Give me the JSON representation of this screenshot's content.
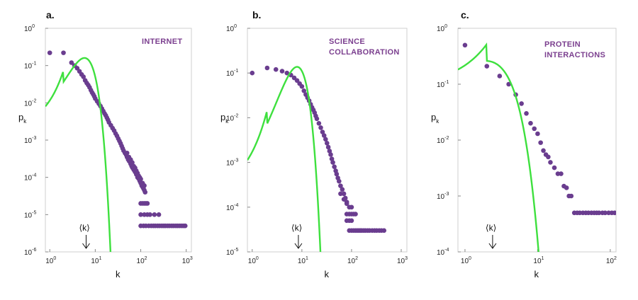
{
  "colors": {
    "data": "#6a3d8f",
    "fit": "#3ee03e",
    "annotation": "#7b3f8f",
    "frame": "#cfcfcf"
  },
  "chart_data": [
    {
      "type": "scatter",
      "panel": "a.",
      "annotation": [
        "INTERNET"
      ],
      "xlabel": "k",
      "ylabel": "p",
      "ylabel_sub": "k",
      "x_scale": "log",
      "y_scale": "log",
      "xlim": [
        0.8,
        1300
      ],
      "ylim": [
        1e-06,
        1
      ],
      "x_ticks": [
        {
          "base": "10",
          "exp": "0",
          "v": 1
        },
        {
          "base": "10",
          "exp": "1",
          "v": 10
        },
        {
          "base": "10",
          "exp": "2",
          "v": 100
        },
        {
          "base": "10",
          "exp": "3",
          "v": 1000
        }
      ],
      "y_ticks": [
        {
          "base": "10",
          "exp": "0",
          "v": 1
        },
        {
          "base": "10",
          "exp": "-1",
          "v": 0.1
        },
        {
          "base": "10",
          "exp": "-2",
          "v": 0.01
        },
        {
          "base": "10",
          "exp": "-3",
          "v": 0.001
        },
        {
          "base": "10",
          "exp": "-4",
          "v": 0.0001
        },
        {
          "base": "10",
          "exp": "-5",
          "v": 1e-05
        },
        {
          "base": "10",
          "exp": "-6",
          "v": 1e-06
        }
      ],
      "mean_k_label": "⟨k⟩",
      "mean_k": 6.3,
      "fit_poisson_mean": 6.3,
      "points": [
        [
          1,
          0.22
        ],
        [
          2,
          0.22
        ],
        [
          3,
          0.12
        ],
        [
          3.5,
          0.1
        ],
        [
          4,
          0.085
        ],
        [
          4.5,
          0.07
        ],
        [
          5,
          0.058
        ],
        [
          5.5,
          0.05
        ],
        [
          6,
          0.04
        ],
        [
          6.5,
          0.034
        ],
        [
          7,
          0.03
        ],
        [
          7.5,
          0.026
        ],
        [
          8,
          0.022
        ],
        [
          8.5,
          0.019
        ],
        [
          9,
          0.017
        ],
        [
          9.5,
          0.015
        ],
        [
          10,
          0.013
        ],
        [
          11,
          0.011
        ],
        [
          12,
          0.0095
        ],
        [
          13,
          0.0082
        ],
        [
          14,
          0.007
        ],
        [
          15,
          0.006
        ],
        [
          16,
          0.0052
        ],
        [
          17,
          0.0046
        ],
        [
          18,
          0.004
        ],
        [
          19,
          0.0035
        ],
        [
          20,
          0.003
        ],
        [
          22,
          0.0025
        ],
        [
          24,
          0.0021
        ],
        [
          26,
          0.0018
        ],
        [
          28,
          0.0015
        ],
        [
          30,
          0.0013
        ],
        [
          32,
          0.0011
        ],
        [
          34,
          0.00095
        ],
        [
          36,
          0.00082
        ],
        [
          38,
          0.0007
        ],
        [
          40,
          0.0006
        ],
        [
          42,
          0.00052
        ],
        [
          45,
          0.00045
        ],
        [
          48,
          0.0004
        ],
        [
          50,
          0.00035
        ],
        [
          53,
          0.0003
        ],
        [
          56,
          0.00027
        ],
        [
          60,
          0.00023
        ],
        [
          63,
          0.0002
        ],
        [
          66,
          0.00018
        ],
        [
          70,
          0.00016
        ],
        [
          75,
          0.00014
        ],
        [
          80,
          0.00012
        ],
        [
          85,
          0.0001
        ],
        [
          90,
          9.2e-05
        ],
        [
          95,
          8e-05
        ],
        [
          100,
          7e-05
        ],
        [
          105,
          6e-05
        ],
        [
          110,
          5.5e-05
        ],
        [
          115,
          5e-05
        ],
        [
          120,
          4.5e-05
        ],
        [
          125,
          4e-05
        ],
        [
          50,
          0.00045
        ],
        [
          55,
          0.00035
        ],
        [
          60,
          0.0003
        ],
        [
          65,
          0.00025
        ],
        [
          70,
          0.0002
        ],
        [
          75,
          0.00018
        ],
        [
          80,
          0.00015
        ],
        [
          85,
          0.00013
        ],
        [
          90,
          0.00011
        ],
        [
          95,
          0.0001
        ],
        [
          100,
          9e-05
        ],
        [
          110,
          7e-05
        ],
        [
          120,
          6e-05
        ],
        [
          100,
          2e-05
        ],
        [
          110,
          2e-05
        ],
        [
          120,
          2e-05
        ],
        [
          130,
          2e-05
        ],
        [
          140,
          2e-05
        ],
        [
          100,
          1e-05
        ],
        [
          120,
          1e-05
        ],
        [
          140,
          1e-05
        ],
        [
          160,
          1e-05
        ],
        [
          200,
          1e-05
        ],
        [
          250,
          1e-05
        ],
        [
          100,
          5e-06
        ],
        [
          115,
          5e-06
        ],
        [
          130,
          5e-06
        ],
        [
          150,
          5e-06
        ],
        [
          170,
          5e-06
        ],
        [
          190,
          5e-06
        ],
        [
          210,
          5e-06
        ],
        [
          235,
          5e-06
        ],
        [
          260,
          5e-06
        ],
        [
          290,
          5e-06
        ],
        [
          320,
          5e-06
        ],
        [
          350,
          5e-06
        ],
        [
          390,
          5e-06
        ],
        [
          430,
          5e-06
        ],
        [
          480,
          5e-06
        ],
        [
          530,
          5e-06
        ],
        [
          590,
          5e-06
        ],
        [
          650,
          5e-06
        ],
        [
          720,
          5e-06
        ],
        [
          800,
          5e-06
        ],
        [
          880,
          5e-06
        ],
        [
          950,
          5e-06
        ]
      ]
    },
    {
      "type": "scatter",
      "panel": "b.",
      "annotation": [
        "SCIENCE",
        "COLLABORATION"
      ],
      "xlabel": "k",
      "ylabel": "p",
      "ylabel_sub": "k",
      "x_scale": "log",
      "y_scale": "log",
      "xlim": [
        0.8,
        1300
      ],
      "ylim": [
        1e-05,
        1
      ],
      "x_ticks": [
        {
          "base": "10",
          "exp": "0",
          "v": 1
        },
        {
          "base": "10",
          "exp": "1",
          "v": 10
        },
        {
          "base": "10",
          "exp": "2",
          "v": 100
        },
        {
          "base": "10",
          "exp": "3",
          "v": 1000
        }
      ],
      "y_ticks": [
        {
          "base": "10",
          "exp": "0",
          "v": 1
        },
        {
          "base": "10",
          "exp": "-1",
          "v": 0.1
        },
        {
          "base": "10",
          "exp": "-2",
          "v": 0.01
        },
        {
          "base": "10",
          "exp": "-3",
          "v": 0.001
        },
        {
          "base": "10",
          "exp": "-4",
          "v": 0.0001
        },
        {
          "base": "10",
          "exp": "-5",
          "v": 1e-05
        }
      ],
      "mean_k_label": "⟨k⟩",
      "mean_k": 8.5,
      "fit_poisson_mean": 8.5,
      "points": [
        [
          1,
          0.1
        ],
        [
          2,
          0.13
        ],
        [
          3,
          0.12
        ],
        [
          4,
          0.11
        ],
        [
          5,
          0.1
        ],
        [
          6,
          0.09
        ],
        [
          7,
          0.078
        ],
        [
          8,
          0.068
        ],
        [
          9,
          0.058
        ],
        [
          10,
          0.05
        ],
        [
          11,
          0.04
        ],
        [
          12,
          0.033
        ],
        [
          13,
          0.028
        ],
        [
          14,
          0.024
        ],
        [
          15,
          0.02
        ],
        [
          16,
          0.017
        ],
        [
          17,
          0.015
        ],
        [
          18,
          0.013
        ],
        [
          19,
          0.011
        ],
        [
          20,
          0.0095
        ],
        [
          22,
          0.0075
        ],
        [
          24,
          0.006
        ],
        [
          26,
          0.0048
        ],
        [
          28,
          0.004
        ],
        [
          30,
          0.0033
        ],
        [
          32,
          0.0027
        ],
        [
          34,
          0.0022
        ],
        [
          36,
          0.0018
        ],
        [
          38,
          0.0015
        ],
        [
          40,
          0.0012
        ],
        [
          42,
          0.001
        ],
        [
          45,
          0.0008
        ],
        [
          48,
          0.00065
        ],
        [
          50,
          0.00055
        ],
        [
          53,
          0.00045
        ],
        [
          56,
          0.00038
        ],
        [
          60,
          0.0003
        ],
        [
          65,
          0.00025
        ],
        [
          70,
          0.0002
        ],
        [
          75,
          0.00016
        ],
        [
          80,
          0.00013
        ],
        [
          60,
          0.0002
        ],
        [
          70,
          0.00015
        ],
        [
          80,
          0.00012
        ],
        [
          90,
          0.0001
        ],
        [
          100,
          0.0001
        ],
        [
          80,
          5e-05
        ],
        [
          90,
          5e-05
        ],
        [
          100,
          5e-05
        ],
        [
          80,
          7e-05
        ],
        [
          90,
          7e-05
        ],
        [
          100,
          7e-05
        ],
        [
          110,
          7e-05
        ],
        [
          120,
          7e-05
        ],
        [
          90,
          3e-05
        ],
        [
          100,
          3e-05
        ],
        [
          110,
          3e-05
        ],
        [
          120,
          3e-05
        ],
        [
          130,
          3e-05
        ],
        [
          140,
          3e-05
        ],
        [
          150,
          3e-05
        ],
        [
          160,
          3e-05
        ],
        [
          175,
          3e-05
        ],
        [
          190,
          3e-05
        ],
        [
          210,
          3e-05
        ],
        [
          230,
          3e-05
        ],
        [
          260,
          3e-05
        ],
        [
          290,
          3e-05
        ],
        [
          320,
          3e-05
        ],
        [
          360,
          3e-05
        ],
        [
          400,
          3e-05
        ],
        [
          450,
          3e-05
        ]
      ]
    },
    {
      "type": "scatter",
      "panel": "c.",
      "annotation": [
        "PROTEIN",
        "INTERACTIONS"
      ],
      "xlabel": "k",
      "ylabel": "p",
      "ylabel_sub": "k",
      "x_scale": "log",
      "y_scale": "log",
      "xlim": [
        0.8,
        120
      ],
      "ylim": [
        0.0001,
        1
      ],
      "x_ticks": [
        {
          "base": "10",
          "exp": "0",
          "v": 1
        },
        {
          "base": "10",
          "exp": "1",
          "v": 10
        },
        {
          "base": "10",
          "exp": "2",
          "v": 100
        }
      ],
      "y_ticks": [
        {
          "base": "10",
          "exp": "0",
          "v": 1
        },
        {
          "base": "10",
          "exp": "-1",
          "v": 0.1
        },
        {
          "base": "10",
          "exp": "-2",
          "v": 0.01
        },
        {
          "base": "10",
          "exp": "-3",
          "v": 0.001
        },
        {
          "base": "10",
          "exp": "-4",
          "v": 0.0001
        }
      ],
      "mean_k_label": "⟨k⟩",
      "mean_k": 2.4,
      "fit_poisson_mean": 2.4,
      "points": [
        [
          1,
          0.5
        ],
        [
          2,
          0.21
        ],
        [
          3,
          0.14
        ],
        [
          4,
          0.1
        ],
        [
          5,
          0.065
        ],
        [
          6,
          0.045
        ],
        [
          7,
          0.03
        ],
        [
          8,
          0.02
        ],
        [
          9,
          0.016
        ],
        [
          10,
          0.013
        ],
        [
          11,
          0.009
        ],
        [
          12,
          0.0065
        ],
        [
          13,
          0.0055
        ],
        [
          14,
          0.005
        ],
        [
          15,
          0.004
        ],
        [
          17,
          0.0032
        ],
        [
          19,
          0.0025
        ],
        [
          21,
          0.0025
        ],
        [
          23,
          0.0015
        ],
        [
          25,
          0.0014
        ],
        [
          27,
          0.001
        ],
        [
          29,
          0.001
        ],
        [
          32,
          0.0005
        ],
        [
          35,
          0.0005
        ],
        [
          38,
          0.0005
        ],
        [
          42,
          0.0005
        ],
        [
          46,
          0.0005
        ],
        [
          50,
          0.0005
        ],
        [
          55,
          0.0005
        ],
        [
          60,
          0.0005
        ],
        [
          65,
          0.0005
        ],
        [
          70,
          0.0005
        ],
        [
          78,
          0.0005
        ],
        [
          85,
          0.0005
        ],
        [
          95,
          0.0005
        ],
        [
          105,
          0.0005
        ],
        [
          115,
          0.0005
        ]
      ]
    }
  ]
}
